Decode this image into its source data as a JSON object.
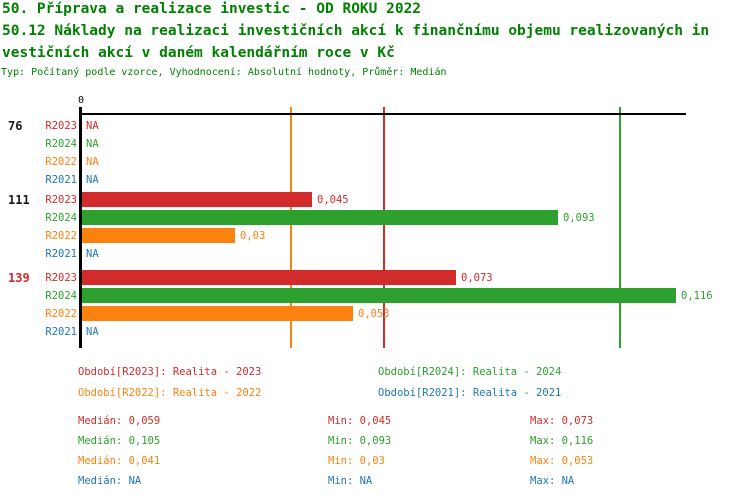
{
  "header": {
    "title_line1": "50. Příprava a realizace investic - OD ROKU 2022",
    "title_line2": "50.12 Náklady na realizaci investičních akcí k finančnímu objemu realizovaných in",
    "title_line3": "vestičních akcí v daném kalendářním roce v Kč",
    "subtitle": "Typ: Počítaný podle vzorce, Vyhodnocení: Absolutní hodnoty, Průměr: Medián"
  },
  "colors": {
    "title": "#008000",
    "R2023": "#d22b2b",
    "R2024": "#2da02d",
    "R2022": "#fb820f",
    "R2021": "#1f78b4",
    "axis": "#000000",
    "group_label": "#1a1a1a",
    "group_label_highlight": "#d22b2b"
  },
  "chart_data": {
    "type": "bar",
    "orientation": "horizontal",
    "title": "50.12 Náklady na realizaci investičních akcí k finančnímu objemu realizovaných investičních akcí v daném kalendářním roce v Kč",
    "x_axis": {
      "tick_label": "0",
      "min": 0,
      "max": 0.118,
      "grid": false
    },
    "series_order": [
      "R2023",
      "R2024",
      "R2022",
      "R2021"
    ],
    "groups": [
      {
        "label": "76",
        "highlight": false,
        "rows": [
          {
            "series": "R2023",
            "value": null,
            "text": "NA"
          },
          {
            "series": "R2024",
            "value": null,
            "text": "NA"
          },
          {
            "series": "R2022",
            "value": null,
            "text": "NA"
          },
          {
            "series": "R2021",
            "value": null,
            "text": "NA"
          }
        ]
      },
      {
        "label": "111",
        "highlight": false,
        "rows": [
          {
            "series": "R2023",
            "value": 0.045,
            "text": "0,045"
          },
          {
            "series": "R2024",
            "value": 0.093,
            "text": "0,093"
          },
          {
            "series": "R2022",
            "value": 0.03,
            "text": "0,03"
          },
          {
            "series": "R2021",
            "value": null,
            "text": "NA"
          }
        ]
      },
      {
        "label": "139",
        "highlight": true,
        "rows": [
          {
            "series": "R2023",
            "value": 0.073,
            "text": "0,073"
          },
          {
            "series": "R2024",
            "value": 0.116,
            "text": "0,116"
          },
          {
            "series": "R2022",
            "value": 0.053,
            "text": "0,053"
          },
          {
            "series": "R2021",
            "value": null,
            "text": "NA"
          }
        ]
      }
    ],
    "median_lines": [
      {
        "series": "R2022",
        "value": 0.041
      },
      {
        "series": "R2023",
        "value": 0.059
      },
      {
        "series": "R2024",
        "value": 0.105
      }
    ]
  },
  "legend": {
    "items": [
      {
        "series": "R2023",
        "label": "Období[R2023]: Realita - 2023"
      },
      {
        "series": "R2024",
        "label": "Období[R2024]: Realita - 2024"
      },
      {
        "series": "R2022",
        "label": "Období[R2022]: Realita - 2022"
      },
      {
        "series": "R2021",
        "label": "Období[R2021]: Realita - 2021"
      }
    ]
  },
  "stats": {
    "labels": {
      "median": "Medián",
      "min": "Min",
      "max": "Max"
    },
    "rows": [
      {
        "series": "R2023",
        "median": "0,059",
        "min": "0,045",
        "max": "0,073"
      },
      {
        "series": "R2024",
        "median": "0,105",
        "min": "0,093",
        "max": "0,116"
      },
      {
        "series": "R2022",
        "median": "0,041",
        "min": "0,03",
        "max": "0,053"
      },
      {
        "series": "R2021",
        "median": "NA",
        "min": "NA",
        "max": "NA"
      }
    ]
  }
}
